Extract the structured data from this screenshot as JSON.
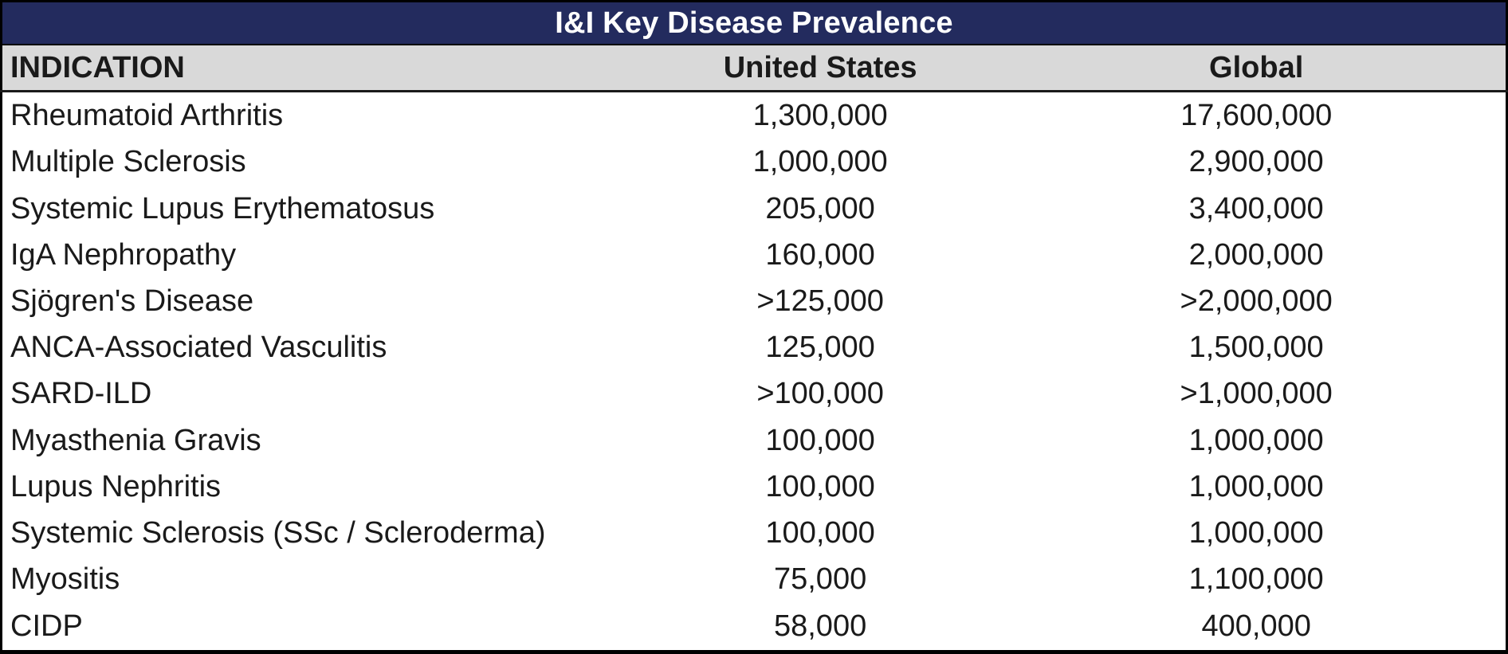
{
  "colors": {
    "title_bg": "#232B5E",
    "title_text": "#FFFFFF",
    "header_bg": "#D9D9D9",
    "header_text": "#1A1A1A",
    "body_bg": "#FFFFFF",
    "body_text": "#1A1A1A",
    "border": "#000000"
  },
  "chart_data": {
    "type": "table",
    "title": "I&I Key Disease Prevalence",
    "columns": [
      "INDICATION",
      "United States",
      "Global"
    ],
    "rows": [
      [
        "Rheumatoid Arthritis",
        "1,300,000",
        "17,600,000"
      ],
      [
        "Multiple Sclerosis",
        "1,000,000",
        "2,900,000"
      ],
      [
        "Systemic Lupus Erythematosus",
        "205,000",
        "3,400,000"
      ],
      [
        "IgA Nephropathy",
        "160,000",
        "2,000,000"
      ],
      [
        "Sjögren's Disease",
        ">125,000",
        ">2,000,000"
      ],
      [
        "ANCA-Associated Vasculitis",
        "125,000",
        "1,500,000"
      ],
      [
        "SARD-ILD",
        ">100,000",
        ">1,000,000"
      ],
      [
        "Myasthenia Gravis",
        "100,000",
        "1,000,000"
      ],
      [
        "Lupus Nephritis",
        "100,000",
        "1,000,000"
      ],
      [
        "Systemic Sclerosis (SSc / Scleroderma)",
        "100,000",
        "1,000,000"
      ],
      [
        "Myositis",
        "75,000",
        "1,100,000"
      ],
      [
        "CIDP",
        "58,000",
        "400,000"
      ]
    ],
    "layout": {
      "title_position": "top-banner-centered",
      "indication_align": "left",
      "value_align": "center",
      "gridlines": "none-in-body"
    }
  }
}
